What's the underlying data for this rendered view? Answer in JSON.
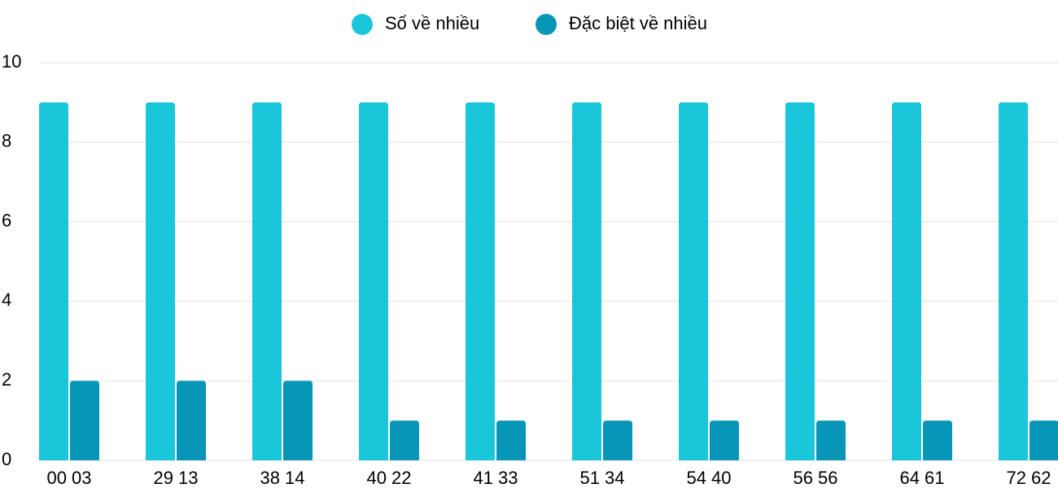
{
  "chart_data": {
    "type": "bar",
    "categories": [
      "00 03",
      "29 13",
      "38 14",
      "40 22",
      "41 33",
      "51 34",
      "54 40",
      "56 56",
      "64 61",
      "72 62"
    ],
    "series": [
      {
        "name": "Số về nhiều",
        "color": "#1ac6d9",
        "values": [
          9,
          9,
          9,
          9,
          9,
          9,
          9,
          9,
          9,
          9
        ]
      },
      {
        "name": "Đặc biệt về nhiều",
        "color": "#0796b8",
        "values": [
          2,
          2,
          2,
          1,
          1,
          1,
          1,
          1,
          1,
          1
        ]
      }
    ],
    "ylim": [
      0,
      10
    ],
    "yticks": [
      0,
      2,
      4,
      6,
      8,
      10
    ],
    "grid": true,
    "legend": "top"
  }
}
